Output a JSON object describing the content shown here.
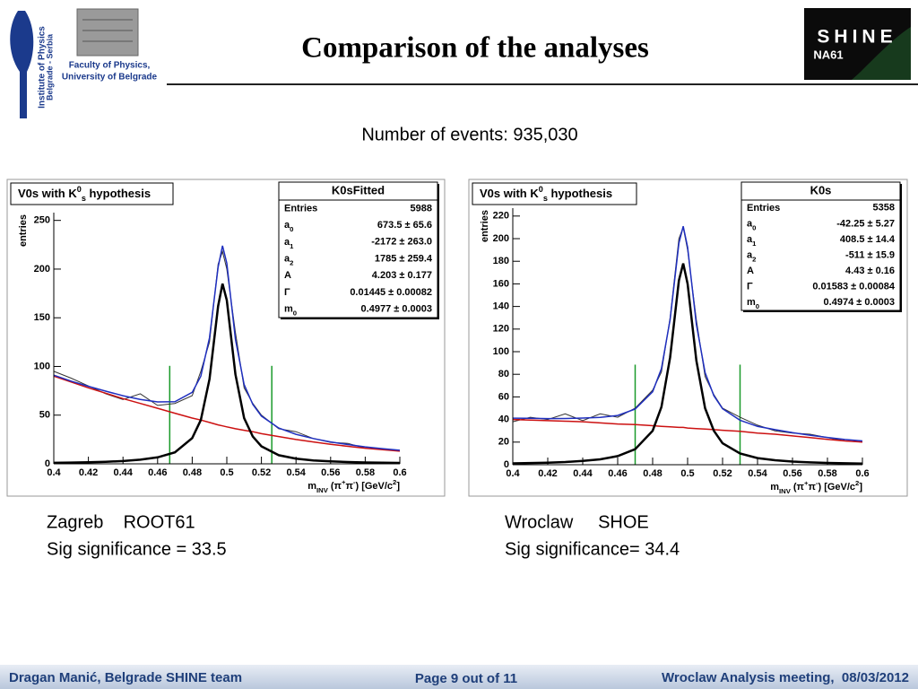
{
  "header": {
    "title": "Comparison of the analyses",
    "institute": [
      "Institute of Physics",
      "Belgrade - Serbia"
    ],
    "faculty": [
      "Faculty of Physics,",
      "University of Belgrade"
    ],
    "logo": [
      "SHINE",
      "NA61"
    ]
  },
  "subtitle": "Number of events: 935,030",
  "chart_data": [
    {
      "type": "line",
      "title": [
        {
          "t": "V0s with K"
        },
        {
          "t": "0",
          "pos": "sup"
        },
        {
          "t": "s",
          "pos": "sub"
        },
        {
          "t": " hypothesis"
        }
      ],
      "xlabel": [
        {
          "t": "m"
        },
        {
          "t": "INV",
          "pos": "sub"
        },
        {
          "t": " (π"
        },
        {
          "t": "+",
          "pos": "sup"
        },
        {
          "t": "π"
        },
        {
          "t": "-",
          "pos": "sup"
        },
        {
          "t": ") [GeV/c"
        },
        {
          "t": "2",
          "pos": "sup"
        },
        {
          "t": "]"
        }
      ],
      "ylabel": "entries",
      "xlim": [
        0.4,
        0.6
      ],
      "ylim": [
        0,
        258
      ],
      "xticks": [
        0.4,
        0.42,
        0.44,
        0.46,
        0.48,
        0.5,
        0.52,
        0.54,
        0.56,
        0.58,
        0.6
      ],
      "yticks": [
        0,
        50,
        100,
        150,
        200,
        250
      ],
      "x": [
        0.4,
        0.41,
        0.42,
        0.43,
        0.44,
        0.45,
        0.46,
        0.47,
        0.48,
        0.485,
        0.49,
        0.495,
        0.4975,
        0.5,
        0.505,
        0.51,
        0.515,
        0.52,
        0.53,
        0.54,
        0.55,
        0.56,
        0.57,
        0.58,
        0.59,
        0.6
      ],
      "series": [
        {
          "color": "#333333",
          "line_width": 1,
          "values": [
            95,
            88,
            80,
            72,
            66,
            72,
            60,
            62,
            70,
            95,
            125,
            205,
            218,
            200,
            135,
            78,
            62,
            50,
            36,
            33,
            26,
            22,
            21,
            16,
            15,
            13
          ]
        },
        {
          "color": "#cc1111",
          "line_width": 1.5,
          "values": [
            90,
            84,
            78,
            72.5,
            67,
            62,
            57,
            52,
            47,
            45,
            42.5,
            40,
            39,
            38,
            36,
            34.5,
            33,
            31,
            28,
            25,
            22.5,
            20,
            18,
            16,
            14.5,
            13
          ]
        },
        {
          "color": "#000000",
          "line_width": 2.5,
          "values": [
            1.0,
            1.25,
            1.6,
            2.1,
            2.9,
            4.2,
            6.6,
            11.8,
            26.4,
            45,
            87,
            162,
            185,
            168,
            92,
            47,
            28,
            18,
            8.8,
            5.3,
            3.5,
            2.5,
            1.8,
            1.4,
            1.1,
            0.9
          ]
        },
        {
          "color": "#1f2fbf",
          "line_width": 1.5,
          "values": [
            91,
            85,
            79.6,
            74.6,
            69.9,
            66.2,
            63.6,
            63.8,
            73.4,
            90,
            129.5,
            202,
            224,
            206,
            128,
            81.5,
            61,
            49,
            36.8,
            30.3,
            26,
            22.5,
            19.8,
            17.4,
            15.6,
            13.9
          ]
        }
      ],
      "vlines": [
        0.467,
        0.526
      ],
      "vline_color": "#1a9a2a",
      "stats": {
        "name": "K0sFitted",
        "rows": [
          {
            "label": [
              {
                "t": "Entries"
              }
            ],
            "value": "5988"
          },
          {
            "label": [
              {
                "t": "a"
              },
              {
                "t": "0",
                "pos": "sub"
              }
            ],
            "value": "673.5 ± 65.6"
          },
          {
            "label": [
              {
                "t": "a"
              },
              {
                "t": "1",
                "pos": "sub"
              }
            ],
            "value": "-2172 ± 263.0"
          },
          {
            "label": [
              {
                "t": "a"
              },
              {
                "t": "2",
                "pos": "sub"
              }
            ],
            "value": "1785 ± 259.4"
          },
          {
            "label": [
              {
                "t": "A"
              }
            ],
            "value": "4.203 ± 0.177"
          },
          {
            "label": [
              {
                "t": "Γ"
              }
            ],
            "value": "0.01445 ± 0.00082"
          },
          {
            "label": [
              {
                "t": "m"
              },
              {
                "t": "0",
                "pos": "sub"
              }
            ],
            "value": "0.4977 ± 0.0003"
          }
        ]
      }
    },
    {
      "type": "line",
      "title": [
        {
          "t": "V0s with K"
        },
        {
          "t": "0",
          "pos": "sup"
        },
        {
          "t": "s",
          "pos": "sub"
        },
        {
          "t": " hypothesis"
        }
      ],
      "xlabel": [
        {
          "t": "m"
        },
        {
          "t": "INV",
          "pos": "sub"
        },
        {
          "t": " (π"
        },
        {
          "t": "+",
          "pos": "sup"
        },
        {
          "t": "π"
        },
        {
          "t": "-",
          "pos": "sup"
        },
        {
          "t": ") [GeV/c"
        },
        {
          "t": "2",
          "pos": "sup"
        },
        {
          "t": "]"
        }
      ],
      "ylabel": "entries",
      "xlim": [
        0.4,
        0.6
      ],
      "ylim": [
        0,
        227
      ],
      "xticks": [
        0.4,
        0.42,
        0.44,
        0.46,
        0.48,
        0.5,
        0.52,
        0.54,
        0.56,
        0.58,
        0.6
      ],
      "yticks": [
        0,
        20,
        40,
        60,
        80,
        100,
        120,
        140,
        160,
        180,
        200,
        220
      ],
      "x": [
        0.4,
        0.41,
        0.42,
        0.43,
        0.44,
        0.45,
        0.46,
        0.47,
        0.48,
        0.485,
        0.49,
        0.495,
        0.4975,
        0.5,
        0.505,
        0.51,
        0.515,
        0.52,
        0.53,
        0.54,
        0.55,
        0.56,
        0.57,
        0.58,
        0.59,
        0.6
      ],
      "series": [
        {
          "color": "#333333",
          "line_width": 1,
          "values": [
            38,
            42,
            40,
            45,
            39,
            45,
            42,
            50,
            66,
            82,
            130,
            200,
            210,
            190,
            128,
            78,
            62,
            50,
            42,
            35,
            30,
            28,
            27,
            24,
            21,
            20
          ]
        },
        {
          "color": "#cc1111",
          "line_width": 1.5,
          "values": [
            40,
            39.5,
            39,
            38.5,
            38,
            37,
            36,
            35.5,
            34.5,
            34,
            33.5,
            33,
            33,
            32.5,
            32,
            31.5,
            31,
            30.5,
            29.5,
            28,
            27,
            25.5,
            24,
            22.5,
            21,
            20
          ]
        },
        {
          "color": "#000000",
          "line_width": 2.5,
          "values": [
            1.2,
            1.5,
            1.8,
            2.4,
            3.3,
            4.8,
            7.6,
            13.7,
            30,
            51,
            95,
            163,
            178,
            160,
            92,
            50,
            30,
            19,
            9.9,
            5.9,
            4,
            2.8,
            2.1,
            1.6,
            1.3,
            1.0
          ]
        },
        {
          "color": "#1f2fbf",
          "line_width": 1.5,
          "values": [
            41.2,
            41,
            40.8,
            40.9,
            41.3,
            41.8,
            43.6,
            49.2,
            64.5,
            85,
            128.5,
            196,
            211,
            192.5,
            124,
            81.5,
            61,
            49.5,
            39.4,
            33.9,
            31,
            28.3,
            26.1,
            24.1,
            22.3,
            21
          ]
        }
      ],
      "vlines": [
        0.47,
        0.53
      ],
      "vline_color": "#1a9a2a",
      "stats": {
        "name": "K0s",
        "rows": [
          {
            "label": [
              {
                "t": "Entries"
              }
            ],
            "value": "5358"
          },
          {
            "label": [
              {
                "t": "a"
              },
              {
                "t": "0",
                "pos": "sub"
              }
            ],
            "value": "-42.25 ± 5.27"
          },
          {
            "label": [
              {
                "t": "a"
              },
              {
                "t": "1",
                "pos": "sub"
              }
            ],
            "value": "408.5 ± 14.4"
          },
          {
            "label": [
              {
                "t": "a"
              },
              {
                "t": "2",
                "pos": "sub"
              }
            ],
            "value": "-511 ± 15.9"
          },
          {
            "label": [
              {
                "t": "A"
              }
            ],
            "value": "4.43 ± 0.16"
          },
          {
            "label": [
              {
                "t": "Γ"
              }
            ],
            "value": "0.01583 ± 0.00084"
          },
          {
            "label": [
              {
                "t": "m"
              },
              {
                "t": "0",
                "pos": "sub"
              }
            ],
            "value": "0.4974 ± 0.0003"
          }
        ]
      }
    }
  ],
  "captions": [
    [
      "Zagreb    ROOT61",
      "Sig significance = 33.5"
    ],
    [
      "Wroclaw     SHOE",
      "Sig significance= 34.4"
    ]
  ],
  "footer": {
    "author": "Dragan Manić, Belgrade SHINE team",
    "page": "Page 9 out of 11",
    "event": "Wroclaw Analysis meeting,  08/03/2012"
  }
}
